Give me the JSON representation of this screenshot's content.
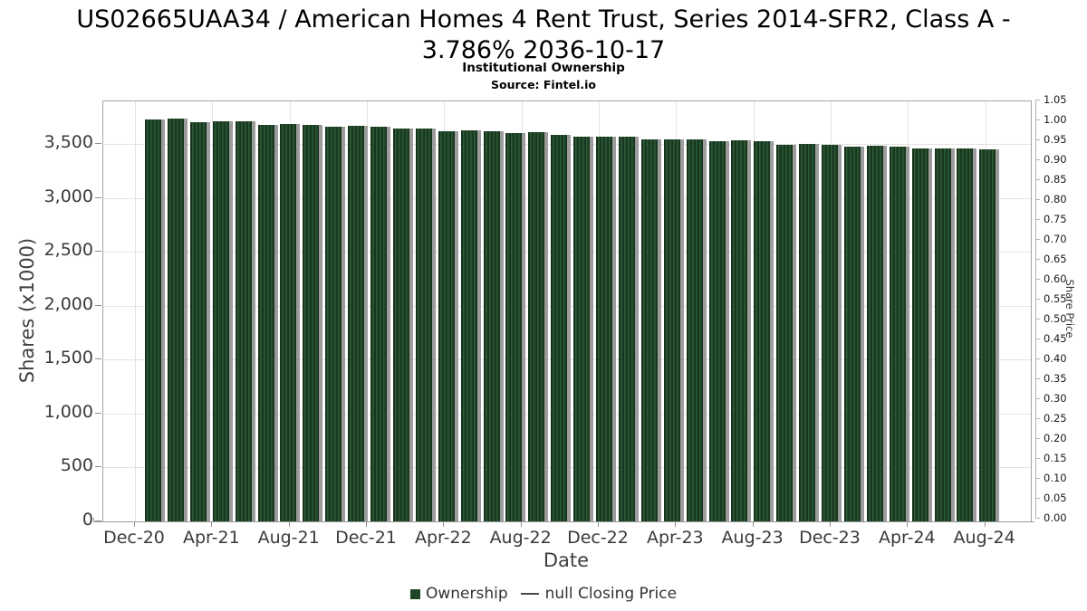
{
  "title_lines": [
    "US02665UAA34 / American Homes 4 Rent Trust, Series 2014-SFR2, Class A -",
    "3.786% 2036-10-17"
  ],
  "subtitle": "Institutional Ownership",
  "source": "Source: Fintel.io",
  "colors": {
    "bar_green_dark": "#16331c",
    "bar_green_mid": "#2e5b38",
    "bar_shadow_gray": "#9c9c9c",
    "gridline": "#e3e3e3",
    "axis_gray": "#9a9a9a",
    "tick_text": "#3a3a3a"
  },
  "chart_data": {
    "type": "bar",
    "title": "US02665UAA34 / American Homes 4 Rent Trust, Series 2014-SFR2, Class A - 3.786% 2036-10-17",
    "subtitle": "Institutional Ownership",
    "source": "Source: Fintel.io",
    "xlabel": "Date",
    "ylabel_left": "Shares (x1000)",
    "ylabel_right": "Share Price",
    "grid": true,
    "legend_position": "bottom",
    "x_tick_labels": [
      "Dec-20",
      "Apr-21",
      "Aug-21",
      "Dec-21",
      "Apr-22",
      "Aug-22",
      "Dec-22",
      "Apr-23",
      "Aug-23",
      "Dec-23",
      "Apr-24",
      "Aug-24"
    ],
    "y_left_tick_values": [
      0,
      500,
      1000,
      1500,
      2000,
      2500,
      3000,
      3500
    ],
    "y_left_tick_labels": [
      "0",
      "500",
      "1,000",
      "1,500",
      "2,000",
      "2,500",
      "3,000",
      "3,500"
    ],
    "ylim_left": [
      0,
      3900
    ],
    "y_right_tick_labels": [
      "1.05",
      "1.00",
      "0.95",
      "0.90",
      "0.85",
      "0.80",
      "0.75",
      "0.70",
      "0.65",
      "0.60",
      "0.55",
      "0.50",
      "0.45",
      "0.40",
      "0.35",
      "0.30",
      "0.25",
      "0.20",
      "0.15",
      "0.10",
      "0.05",
      "0.00"
    ],
    "ylim_right": [
      0,
      1.05
    ],
    "series": [
      {
        "name": "Ownership",
        "type": "bar",
        "color": "#1f4527",
        "values": [
          3730,
          3735,
          3705,
          3710,
          3710,
          3680,
          3685,
          3680,
          3660,
          3665,
          3660,
          3640,
          3640,
          3620,
          3625,
          3620,
          3600,
          3605,
          3580,
          3565,
          3570,
          3565,
          3545,
          3545,
          3540,
          3525,
          3530,
          3525,
          3495,
          3500,
          3495,
          3475,
          3480,
          3475,
          3455,
          3460,
          3455,
          3450
        ]
      },
      {
        "name": "null Closing Price",
        "type": "line",
        "color": "#4a4a4a",
        "values": []
      }
    ]
  }
}
